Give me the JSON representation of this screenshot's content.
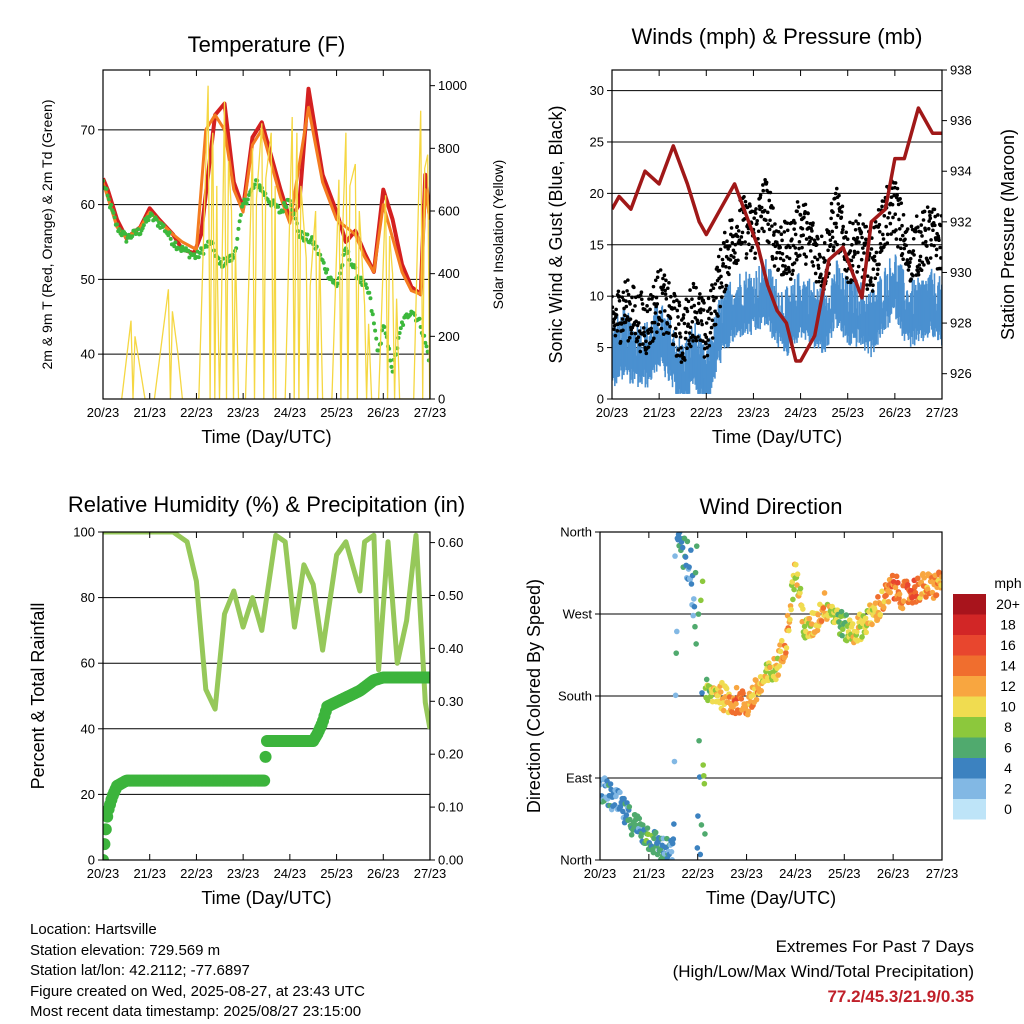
{
  "chart_data": [
    {
      "type": "line",
      "title": "Temperature (F)",
      "xlabel": "Time (Day/UTC)",
      "ylabel": "2m & 9m T (Red, Orange) & 2m Td (Green)",
      "ylabel_right": "Solar Insolation (Yellow)",
      "x_ticks": [
        "20/23",
        "21/23",
        "22/23",
        "23/23",
        "24/23",
        "25/23",
        "26/23",
        "27/23"
      ],
      "ylim": [
        34,
        78
      ],
      "y_ticks": [
        40,
        50,
        60,
        70
      ],
      "ylim_right": [
        0,
        1050
      ],
      "y_ticks_right": [
        0,
        200,
        400,
        600,
        800,
        1000
      ],
      "grid": true,
      "series": [
        {
          "name": "2m T",
          "color": "#d42020",
          "x": [
            0,
            0.1,
            0.3,
            0.5,
            0.8,
            1.0,
            1.2,
            1.5,
            1.7,
            1.95,
            2.1,
            2.4,
            2.6,
            2.8,
            3.0,
            3.2,
            3.4,
            3.8,
            4.0,
            4.2,
            4.4,
            4.7,
            5.0,
            5.2,
            5.4,
            5.6,
            5.8,
            6.0,
            6.2,
            6.4,
            6.6,
            6.8,
            6.9,
            7.0
          ],
          "y": [
            63.5,
            62,
            58,
            55.5,
            57,
            59.5,
            58,
            56,
            54,
            53.5,
            56,
            72,
            73.5,
            63,
            59.5,
            69,
            71,
            62,
            58,
            60,
            75.5,
            64,
            59,
            55,
            56.5,
            53.5,
            51,
            62,
            58,
            52,
            49,
            48,
            64,
            58
          ]
        },
        {
          "name": "9m T",
          "color": "#f47c20",
          "x": [
            0,
            0.3,
            0.5,
            0.8,
            1.0,
            1.5,
            1.7,
            2.0,
            2.2,
            2.4,
            2.6,
            2.8,
            3.0,
            3.2,
            3.4,
            3.8,
            4.0,
            4.4,
            4.7,
            5.0,
            5.4,
            5.6,
            5.8,
            6.0,
            6.4,
            6.6,
            6.8,
            6.9,
            7.0
          ],
          "y": [
            63,
            57,
            55.5,
            57,
            59,
            56,
            55,
            54,
            70,
            72,
            70,
            62,
            59,
            68,
            70,
            61,
            57.5,
            73,
            63,
            58,
            56,
            53,
            51,
            60,
            51,
            48.5,
            48,
            62,
            58
          ]
        },
        {
          "name": "2m Td",
          "color": "#3cb83c",
          "x": [
            0,
            0.3,
            0.5,
            0.8,
            1.0,
            1.3,
            1.5,
            1.7,
            2.0,
            2.3,
            2.5,
            2.8,
            3.0,
            3.3,
            3.5,
            3.8,
            4.0,
            4.2,
            4.5,
            4.8,
            5.0,
            5.2,
            5.4,
            5.7,
            5.9,
            6.0,
            6.2,
            6.4,
            6.6,
            6.8,
            7.0
          ],
          "y": [
            63,
            57,
            55.5,
            56.5,
            58.5,
            57,
            55,
            54,
            53,
            55,
            52,
            53,
            60,
            63,
            61,
            59,
            61,
            56,
            55,
            51,
            49,
            54,
            51,
            48,
            40,
            44,
            38,
            44,
            46,
            44,
            39
          ]
        },
        {
          "name": "Solar Insolation",
          "color": "#f5d742",
          "axis": "right",
          "x": [
            0.4,
            0.6,
            0.75,
            0.9,
            1.1,
            1.4,
            1.6,
            1.7,
            1.8,
            1.9,
            2.05,
            2.25,
            2.35,
            2.45,
            2.6,
            2.75,
            2.9,
            3.05,
            3.2,
            3.4,
            3.6,
            3.7,
            3.9,
            4.05,
            4.15,
            4.35,
            4.55,
            4.7,
            4.9,
            5.05,
            5.2,
            5.4,
            5.6,
            5.75,
            5.9,
            6.05,
            6.2,
            6.35,
            6.5,
            6.65,
            6.8,
            6.95,
            7.0
          ],
          "y": [
            0,
            250,
            140,
            0,
            0,
            350,
            150,
            0,
            0,
            0,
            0,
            1000,
            850,
            380,
            950,
            600,
            0,
            0,
            800,
            880,
            850,
            0,
            0,
            900,
            850,
            450,
            600,
            0,
            0,
            700,
            850,
            750,
            300,
            0,
            0,
            650,
            400,
            0,
            0,
            0,
            920,
            780,
            400
          ]
        }
      ]
    },
    {
      "type": "scatter",
      "title": "Winds (mph) & Pressure (mb)",
      "xlabel": "Time (Day/UTC)",
      "ylabel": "Sonic Wind & Gust (Blue, Black)",
      "ylabel_right": "Station Pressure (Maroon)",
      "x_ticks": [
        "20/23",
        "21/23",
        "22/23",
        "23/23",
        "24/23",
        "25/23",
        "26/23",
        "27/23"
      ],
      "ylim": [
        0,
        32
      ],
      "y_ticks": [
        0,
        5,
        10,
        15,
        20,
        25,
        30
      ],
      "ylim_right": [
        925,
        938
      ],
      "y_ticks_right": [
        926,
        928,
        930,
        932,
        934,
        936,
        938
      ],
      "grid": true,
      "series": [
        {
          "name": "Gust",
          "color": "#000000",
          "x": [
            0,
            0.25,
            0.5,
            0.75,
            1.0,
            1.25,
            1.5,
            1.75,
            2.0,
            2.25,
            2.5,
            2.75,
            3.0,
            3.25,
            3.5,
            3.75,
            4.0,
            4.25,
            4.5,
            4.75,
            5.0,
            5.25,
            5.5,
            5.75,
            6.0,
            6.25,
            6.5,
            6.75,
            7.0
          ],
          "y": [
            7,
            9,
            8,
            7,
            10,
            8,
            6,
            9,
            6,
            11,
            15,
            17,
            16,
            19,
            15,
            14,
            17,
            15,
            13,
            18,
            14,
            15,
            13,
            17,
            19,
            14,
            15,
            16,
            15
          ]
        },
        {
          "name": "Wind",
          "color": "#4a90d0",
          "x": [
            0,
            0.25,
            0.5,
            0.75,
            1.0,
            1.25,
            1.5,
            1.75,
            2.0,
            2.25,
            2.5,
            2.75,
            3.0,
            3.25,
            3.5,
            3.75,
            4.0,
            4.25,
            4.5,
            4.75,
            5.0,
            5.25,
            5.5,
            5.75,
            6.0,
            6.25,
            6.5,
            6.75,
            7.0
          ],
          "y": [
            5,
            6,
            5,
            5,
            7,
            5,
            3,
            5,
            2,
            7,
            9,
            10,
            10,
            11,
            9,
            8,
            10,
            9,
            8,
            11,
            9,
            9,
            8,
            10,
            12,
            9,
            9,
            10,
            9
          ]
        },
        {
          "name": "Station Pressure",
          "color": "#a01818",
          "axis": "right",
          "x": [
            0,
            0.15,
            0.4,
            0.7,
            1.0,
            1.3,
            1.6,
            1.85,
            2.0,
            2.3,
            2.6,
            2.9,
            3.1,
            3.3,
            3.5,
            3.7,
            3.9,
            4.0,
            4.3,
            4.6,
            4.9,
            5.1,
            5.3,
            5.5,
            5.8,
            6.0,
            6.2,
            6.5,
            6.8,
            7.0
          ],
          "y": [
            932.5,
            933,
            932.5,
            934,
            933.5,
            935,
            933.5,
            932,
            931.5,
            932.5,
            933.5,
            932,
            931,
            929.5,
            928.5,
            928,
            926.5,
            926.5,
            927.5,
            930.5,
            931,
            930,
            929,
            932,
            932.5,
            934.5,
            934.5,
            936.5,
            935.5,
            935.5
          ]
        }
      ]
    },
    {
      "type": "line",
      "title": "Relative Humidity (%) & Precipitation (in)",
      "xlabel": "Time (Day/UTC)",
      "ylabel": "Percent & Total Rainfall",
      "x_ticks": [
        "20/23",
        "21/23",
        "22/23",
        "23/23",
        "24/23",
        "25/23",
        "26/23",
        "27/23"
      ],
      "ylim": [
        0,
        100
      ],
      "y_ticks": [
        0,
        20,
        40,
        60,
        80,
        100
      ],
      "ylim_right": [
        0,
        0.62
      ],
      "y_ticks_right": [
        "0.00",
        "0.10",
        "0.20",
        "0.30",
        "0.40",
        "0.50",
        "0.60"
      ],
      "grid": true,
      "series": [
        {
          "name": "Relative Humidity",
          "color": "#96c85a",
          "x": [
            0,
            1.0,
            1.3,
            1.5,
            1.8,
            2.0,
            2.2,
            2.4,
            2.6,
            2.8,
            3.0,
            3.2,
            3.4,
            3.7,
            3.9,
            4.1,
            4.2,
            4.3,
            4.5,
            4.7,
            5.0,
            5.2,
            5.5,
            5.6,
            5.8,
            5.9,
            6.1,
            6.3,
            6.5,
            6.7,
            6.9,
            7.0
          ],
          "y": [
            100,
            100,
            100,
            100,
            97,
            85,
            52,
            46,
            75,
            82,
            71,
            80,
            70,
            99,
            97,
            71,
            80,
            90,
            84,
            64,
            93,
            97,
            82,
            97,
            99,
            58,
            97,
            60,
            73,
            99,
            48,
            40
          ]
        },
        {
          "name": "Total Rainfall",
          "color": "#3cb43c",
          "axis": "right",
          "x": [
            0,
            0.05,
            0.1,
            0.2,
            0.3,
            0.5,
            1.0,
            2.0,
            3.0,
            3.45,
            3.5,
            4.0,
            4.5,
            4.6,
            4.7,
            4.8,
            5.5,
            5.8,
            6.0,
            7.0
          ],
          "y": [
            0,
            0.05,
            0.09,
            0.12,
            0.14,
            0.15,
            0.15,
            0.15,
            0.15,
            0.15,
            0.225,
            0.225,
            0.225,
            0.24,
            0.26,
            0.29,
            0.32,
            0.34,
            0.345,
            0.345
          ]
        }
      ]
    },
    {
      "type": "scatter",
      "title": "Wind Direction",
      "xlabel": "Time (Day/UTC)",
      "ylabel": "Direction (Colored By Speed)",
      "x_ticks": [
        "20/23",
        "21/23",
        "22/23",
        "23/23",
        "24/23",
        "25/23",
        "26/23",
        "27/23"
      ],
      "ylim": [
        0,
        360
      ],
      "y_ticks": [
        "North",
        "East",
        "South",
        "West",
        "North"
      ],
      "grid": true,
      "legend": {
        "title": "mph",
        "labels": [
          "20+",
          "18",
          "16",
          "14",
          "12",
          "10",
          "8",
          "6",
          "4",
          "2",
          "0"
        ],
        "colors": [
          "#a8141c",
          "#d22626",
          "#e8462e",
          "#f06e2e",
          "#f8a640",
          "#f0dc50",
          "#8cc83c",
          "#50aa6e",
          "#3c82c0",
          "#82b8e4",
          "#bee4f8"
        ]
      },
      "series": [
        {
          "name": "Direction",
          "x": [
            0,
            0.2,
            0.4,
            0.6,
            0.8,
            1.0,
            1.2,
            1.4,
            1.5,
            1.6,
            1.7,
            1.8,
            1.9,
            2.0,
            2.1,
            2.2,
            2.4,
            2.6,
            2.8,
            3.0,
            3.2,
            3.4,
            3.6,
            3.8,
            4.0,
            4.2,
            4.4,
            4.6,
            4.8,
            5.0,
            5.2,
            5.4,
            5.6,
            5.8,
            6.0,
            6.2,
            6.4,
            6.6,
            6.8,
            7.0
          ],
          "y": [
            80,
            70,
            60,
            45,
            35,
            25,
            15,
            8,
            10,
            360,
            350,
            340,
            280,
            250,
            200,
            180,
            185,
            175,
            175,
            170,
            185,
            200,
            210,
            240,
            320,
            250,
            260,
            280,
            270,
            255,
            250,
            260,
            270,
            285,
            300,
            290,
            295,
            300,
            300,
            305
          ],
          "speed": [
            3,
            4,
            3,
            5,
            4,
            6,
            5,
            4,
            3,
            4,
            5,
            3,
            4,
            5,
            6,
            8,
            10,
            12,
            14,
            11,
            13,
            9,
            10,
            12,
            10,
            9,
            11,
            12,
            8,
            7,
            10,
            9,
            11,
            12,
            14,
            13,
            15,
            12,
            13,
            12
          ]
        }
      ]
    }
  ],
  "info": {
    "location": "Location: Hartsville",
    "elevation": "Station elevation: 729.569 m",
    "latlon": "Station lat/lon: 42.2112; -77.6897",
    "created": "Figure created on Wed, 2025-08-27, at 23:43 UTC",
    "recent": "Most recent data timestamp: 2025/08/27 23:15:00"
  },
  "extremes": {
    "title": "Extremes For Past 7 Days",
    "subtitle": "(High/Low/Max Wind/Total Precipitation)",
    "values": "77.2/45.3/21.9/0.35"
  }
}
